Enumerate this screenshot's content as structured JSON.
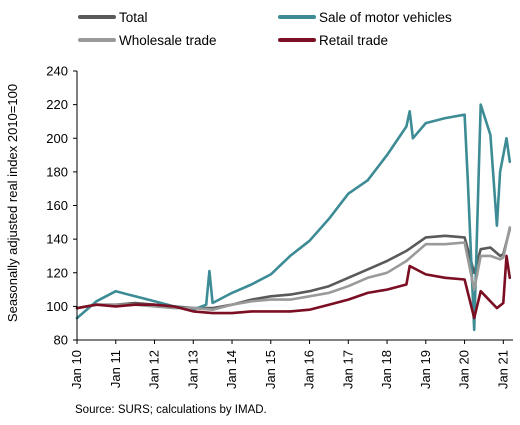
{
  "chart_data": {
    "type": "line",
    "ylabel": "Seasonally adjusted real index 2010=100",
    "ylim": [
      80,
      240
    ],
    "yticks": [
      80,
      100,
      120,
      140,
      160,
      180,
      200,
      220,
      240
    ],
    "xticks": [
      "Jan 10",
      "Jan 11",
      "Jan 12",
      "Jan 13",
      "Jan 14",
      "Jan 15",
      "Jan 16",
      "Jan 17",
      "Jan 18",
      "Jan 19",
      "Jan 20",
      "Jan 21"
    ],
    "x_start": "2010-01",
    "x_end": "2021-04",
    "legend_position": "top",
    "grid": false,
    "series": [
      {
        "name": "Total",
        "color": "#5a5a5a",
        "points": [
          [
            "2010-01",
            99
          ],
          [
            "2010-07",
            101
          ],
          [
            "2011-01",
            101
          ],
          [
            "2011-07",
            102
          ],
          [
            "2012-01",
            101
          ],
          [
            "2012-07",
            100
          ],
          [
            "2013-01",
            99
          ],
          [
            "2013-07",
            99
          ],
          [
            "2014-01",
            101
          ],
          [
            "2014-07",
            104
          ],
          [
            "2015-01",
            106
          ],
          [
            "2015-07",
            107
          ],
          [
            "2016-01",
            109
          ],
          [
            "2016-07",
            112
          ],
          [
            "2017-01",
            117
          ],
          [
            "2017-07",
            122
          ],
          [
            "2018-01",
            127
          ],
          [
            "2018-07",
            133
          ],
          [
            "2019-01",
            141
          ],
          [
            "2019-07",
            142
          ],
          [
            "2020-01",
            141
          ],
          [
            "2020-04",
            120
          ],
          [
            "2020-06",
            134
          ],
          [
            "2020-09",
            135
          ],
          [
            "2020-12",
            130
          ],
          [
            "2021-01",
            131
          ],
          [
            "2021-03",
            146
          ]
        ]
      },
      {
        "name": "Sale of motor vehicles",
        "color": "#3d8c95",
        "points": [
          [
            "2010-01",
            93
          ],
          [
            "2010-07",
            103
          ],
          [
            "2011-01",
            109
          ],
          [
            "2011-07",
            106
          ],
          [
            "2012-01",
            103
          ],
          [
            "2012-07",
            100
          ],
          [
            "2013-01",
            98
          ],
          [
            "2013-05",
            101
          ],
          [
            "2013-06",
            121
          ],
          [
            "2013-07",
            102
          ],
          [
            "2014-01",
            108
          ],
          [
            "2014-07",
            113
          ],
          [
            "2015-01",
            119
          ],
          [
            "2015-07",
            130
          ],
          [
            "2016-01",
            139
          ],
          [
            "2016-07",
            152
          ],
          [
            "2017-01",
            167
          ],
          [
            "2017-07",
            175
          ],
          [
            "2018-01",
            190
          ],
          [
            "2018-07",
            207
          ],
          [
            "2018-08",
            216
          ],
          [
            "2018-09",
            200
          ],
          [
            "2019-01",
            209
          ],
          [
            "2019-07",
            212
          ],
          [
            "2020-01",
            214
          ],
          [
            "2020-02",
            175
          ],
          [
            "2020-04",
            86
          ],
          [
            "2020-06",
            220
          ],
          [
            "2020-09",
            202
          ],
          [
            "2020-11",
            148
          ],
          [
            "2020-12",
            180
          ],
          [
            "2021-02",
            200
          ],
          [
            "2021-03",
            186
          ]
        ]
      },
      {
        "name": "Wholesale trade",
        "color": "#9a9a9a",
        "points": [
          [
            "2010-01",
            99
          ],
          [
            "2010-07",
            101
          ],
          [
            "2011-01",
            101
          ],
          [
            "2011-07",
            101
          ],
          [
            "2012-01",
            100
          ],
          [
            "2012-07",
            99
          ],
          [
            "2013-01",
            99
          ],
          [
            "2013-07",
            98
          ],
          [
            "2014-01",
            101
          ],
          [
            "2014-07",
            103
          ],
          [
            "2015-01",
            104
          ],
          [
            "2015-07",
            104
          ],
          [
            "2016-01",
            106
          ],
          [
            "2016-07",
            108
          ],
          [
            "2017-01",
            112
          ],
          [
            "2017-07",
            117
          ],
          [
            "2018-01",
            120
          ],
          [
            "2018-07",
            127
          ],
          [
            "2019-01",
            137
          ],
          [
            "2019-07",
            137
          ],
          [
            "2020-01",
            138
          ],
          [
            "2020-04",
            110
          ],
          [
            "2020-06",
            130
          ],
          [
            "2020-09",
            130
          ],
          [
            "2020-12",
            128
          ],
          [
            "2021-01",
            129
          ],
          [
            "2021-03",
            147
          ]
        ]
      },
      {
        "name": "Retail trade",
        "color": "#7b0e22",
        "points": [
          [
            "2010-01",
            99
          ],
          [
            "2010-07",
            101
          ],
          [
            "2011-01",
            100
          ],
          [
            "2011-07",
            101
          ],
          [
            "2012-01",
            101
          ],
          [
            "2012-07",
            100
          ],
          [
            "2013-01",
            97
          ],
          [
            "2013-07",
            96
          ],
          [
            "2014-01",
            96
          ],
          [
            "2014-07",
            97
          ],
          [
            "2015-01",
            97
          ],
          [
            "2015-07",
            97
          ],
          [
            "2016-01",
            98
          ],
          [
            "2016-07",
            101
          ],
          [
            "2017-01",
            104
          ],
          [
            "2017-07",
            108
          ],
          [
            "2018-01",
            110
          ],
          [
            "2018-07",
            113
          ],
          [
            "2018-08",
            124
          ],
          [
            "2019-01",
            119
          ],
          [
            "2019-07",
            117
          ],
          [
            "2020-01",
            116
          ],
          [
            "2020-04",
            93
          ],
          [
            "2020-06",
            109
          ],
          [
            "2020-09",
            103
          ],
          [
            "2020-11",
            99
          ],
          [
            "2021-01",
            102
          ],
          [
            "2021-02",
            130
          ],
          [
            "2021-03",
            117
          ]
        ]
      }
    ]
  },
  "footer": {
    "source": "Source: SURS; calculations by IMAD."
  }
}
